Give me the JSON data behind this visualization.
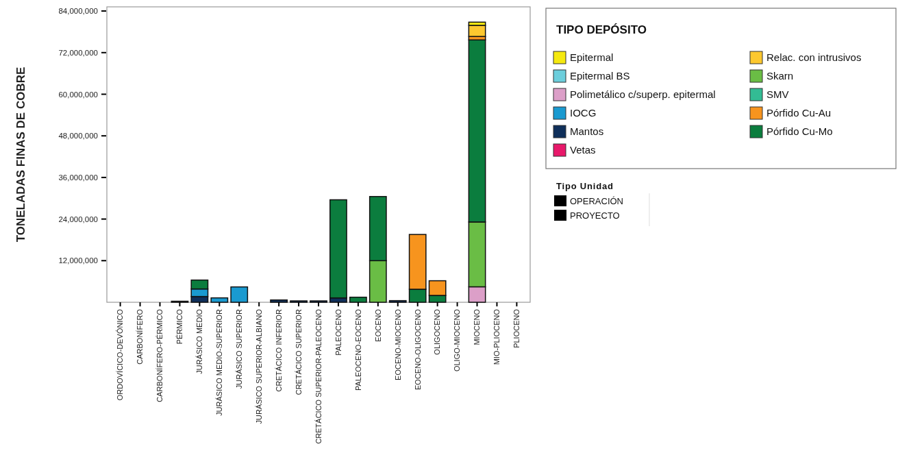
{
  "chart_data": {
    "type": "bar",
    "stacked": true,
    "ylabel": "TONELADAS FINAS DE COBRE",
    "legend_title": "TIPO DEPÓSITO",
    "legend": "top right",
    "grid": false,
    "categories": [
      "ORDOVÍCICO-DEVÓNICO",
      "CARBONÍFERO",
      "CARBONÍFERO-PÉRMICO",
      "PÉRMICO",
      "JURÁSICO MEDIO",
      "JURÁSICO MEDIO-SUPERIOR",
      "JURÁSICO SUPERIOR",
      "JURÁSICO SUPERIOR-ALBIANO",
      "CRETÁCICO INFERIOR",
      "CRETÁCICO SUPERIOR",
      "CRETÁCICO SUPERIOR-PALEOCENO",
      "PALEOCENO",
      "PALEOCENO-EOCENO",
      "EOCENO",
      "EOCENO-MIOCENO",
      "EOCENO-OLIGOCENO",
      "OLIGOCENO",
      "OLIGO-MIOCENO",
      "MIOCENO",
      "MIO-PLIOCENO",
      "PLIOCENO"
    ],
    "ylim": [
      0,
      85200000
    ],
    "yticks": [
      {
        "value": 12000000,
        "label": "12,000,000"
      },
      {
        "value": 24000000,
        "label": "24,000,000"
      },
      {
        "value": 36000000,
        "label": "36,000,000"
      },
      {
        "value": 48000000,
        "label": "48,000,000"
      },
      {
        "value": 60000000,
        "label": "60,000,000"
      },
      {
        "value": 72000000,
        "label": "72,000,000"
      },
      {
        "value": 84000000,
        "label": "84,000,000"
      }
    ],
    "series": [
      {
        "name": "Vetas",
        "color": "#e8186a",
        "values": [
          null,
          null,
          null,
          null,
          null,
          null,
          null,
          null,
          null,
          null,
          null,
          null,
          null,
          null,
          null,
          null,
          null,
          null,
          null,
          null,
          null
        ]
      },
      {
        "name": "Polimetálico c/superp. epitermal",
        "color": "#dc9fc8",
        "values": [
          null,
          null,
          null,
          null,
          null,
          null,
          null,
          null,
          null,
          null,
          null,
          null,
          null,
          null,
          null,
          null,
          null,
          null,
          4460000,
          null,
          null
        ]
      },
      {
        "name": "Mantos",
        "color": "#0f2f5a",
        "values": [
          null,
          null,
          null,
          300000,
          1660000,
          null,
          null,
          null,
          670000,
          400000,
          400000,
          1260000,
          null,
          null,
          470000,
          null,
          null,
          null,
          null,
          null,
          null
        ]
      },
      {
        "name": "IOCG",
        "color": "#1a9ad0",
        "values": [
          null,
          null,
          null,
          null,
          2180000,
          1270000,
          4430000,
          null,
          null,
          null,
          null,
          null,
          null,
          null,
          null,
          null,
          null,
          null,
          null,
          null,
          null
        ]
      },
      {
        "name": "Skarn",
        "color": "#6abd45",
        "values": [
          null,
          null,
          null,
          null,
          null,
          null,
          null,
          null,
          null,
          null,
          null,
          null,
          null,
          12000000,
          null,
          null,
          null,
          null,
          18700000,
          null,
          null
        ]
      },
      {
        "name": "Pórfido Cu-Mo",
        "color": "#0b7d3e",
        "values": [
          null,
          null,
          null,
          null,
          2570000,
          null,
          null,
          null,
          null,
          null,
          null,
          28300000,
          1460000,
          18500000,
          null,
          3760000,
          1980000,
          null,
          52500000,
          null,
          null
        ]
      },
      {
        "name": "Pórfido Cu-Au",
        "color": "#f7941e",
        "values": [
          null,
          null,
          null,
          null,
          null,
          null,
          null,
          null,
          null,
          null,
          null,
          null,
          null,
          null,
          null,
          15800000,
          4230000,
          null,
          1000000,
          null,
          null
        ]
      },
      {
        "name": "Relac.  con intrusivos",
        "color": "#fdc82f",
        "values": [
          null,
          null,
          null,
          null,
          null,
          null,
          null,
          null,
          null,
          null,
          null,
          null,
          null,
          null,
          null,
          null,
          null,
          null,
          3200000,
          null,
          null
        ]
      },
      {
        "name": "SMV",
        "color": "#33bc94",
        "values": [
          null,
          null,
          null,
          null,
          null,
          null,
          null,
          null,
          null,
          null,
          null,
          null,
          null,
          null,
          null,
          null,
          null,
          null,
          null,
          null,
          null
        ]
      },
      {
        "name": "Epitermal BS",
        "color": "#6ccedc",
        "values": [
          null,
          null,
          null,
          null,
          null,
          null,
          null,
          null,
          null,
          null,
          null,
          null,
          null,
          null,
          null,
          null,
          null,
          null,
          null,
          null,
          null
        ]
      },
      {
        "name": "Epitermal",
        "color": "#f5e90f",
        "values": [
          null,
          null,
          null,
          null,
          null,
          null,
          null,
          null,
          null,
          null,
          null,
          null,
          null,
          null,
          null,
          null,
          null,
          null,
          930000,
          null,
          null
        ]
      }
    ],
    "annotations": [
      "Tipo Unidad",
      "OPERACIÓN",
      "PROYECTO"
    ]
  }
}
